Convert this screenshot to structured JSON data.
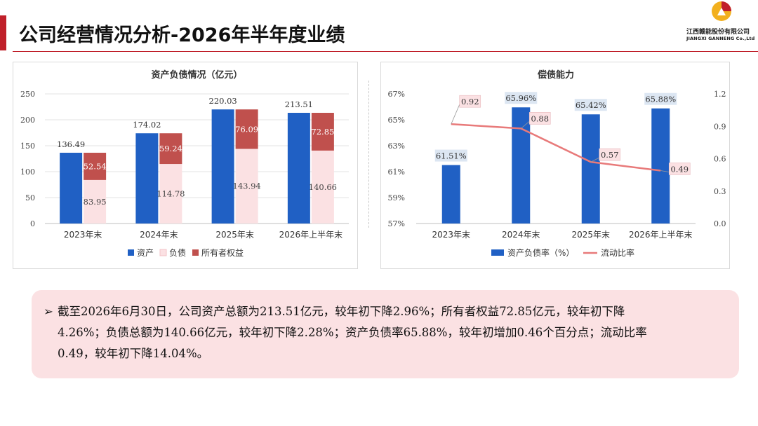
{
  "header": {
    "title": "公司经营情况分析-2026年半年度业绩",
    "company_cn": "江西赣能股份有限公司",
    "company_en": "JIANGXI GANNENG Co.,Ltd",
    "accent_color": "#c0202a"
  },
  "chart_data": [
    {
      "type": "bar",
      "title": "资产负债情况（亿元）",
      "categories": [
        "2023年末",
        "2024年末",
        "2025年末",
        "2026年上半年末"
      ],
      "ylim": [
        0,
        250
      ],
      "yticks": [
        0,
        50,
        100,
        150,
        200,
        250
      ],
      "series": [
        {
          "name": "资产",
          "values": [
            136.49,
            174.02,
            220.03,
            213.51
          ],
          "color": "#2060c4"
        },
        {
          "name": "负债",
          "values": [
            83.95,
            114.78,
            143.94,
            140.66
          ],
          "color": "#fbe1e3"
        },
        {
          "name": "所有者权益",
          "values": [
            52.54,
            59.24,
            76.09,
            72.85
          ],
          "color": "#c0504d"
        }
      ],
      "legend_position": "bottom",
      "grid": true
    },
    {
      "type": "bar+line",
      "title": "偿债能力",
      "categories": [
        "2023年末",
        "2024年末",
        "2025年末",
        "2026年上半年末"
      ],
      "ylim": [
        57,
        67
      ],
      "yticks": [
        "57%",
        "59%",
        "61%",
        "63%",
        "65%",
        "67%"
      ],
      "y2lim": [
        0,
        1.2
      ],
      "y2ticks": [
        "0.0",
        "0.3",
        "0.6",
        "0.9",
        "1.2"
      ],
      "series": [
        {
          "name": "资产负债率（%）",
          "type": "bar",
          "values": [
            61.51,
            65.96,
            65.42,
            65.88
          ],
          "labels": [
            "61.51%",
            "65.96%",
            "65.42%",
            "65.88%"
          ],
          "color": "#2060c4"
        },
        {
          "name": "流动比率",
          "type": "line",
          "axis": "right",
          "values": [
            0.92,
            0.88,
            0.57,
            0.49
          ],
          "labels": [
            "0.92",
            "0.88",
            "0.57",
            "0.49"
          ],
          "color": "#e87a7a"
        }
      ],
      "legend_position": "bottom",
      "grid": false
    }
  ],
  "summary": {
    "line1": "截至2026年6月30日，公司资产总额为213.51亿元，较年初下降2.96%；所有者权益72.85亿元，较年初下降",
    "line2": "4.26%；负债总额为140.66亿元，较年初下降2.28%；资产负债率65.88%，较年初增加0.46个百分点；流动比率",
    "line3": "0.49，较年初下降14.04%。",
    "bullet_icon": "arrow-bullet-icon",
    "background": "#fbe1e3"
  }
}
